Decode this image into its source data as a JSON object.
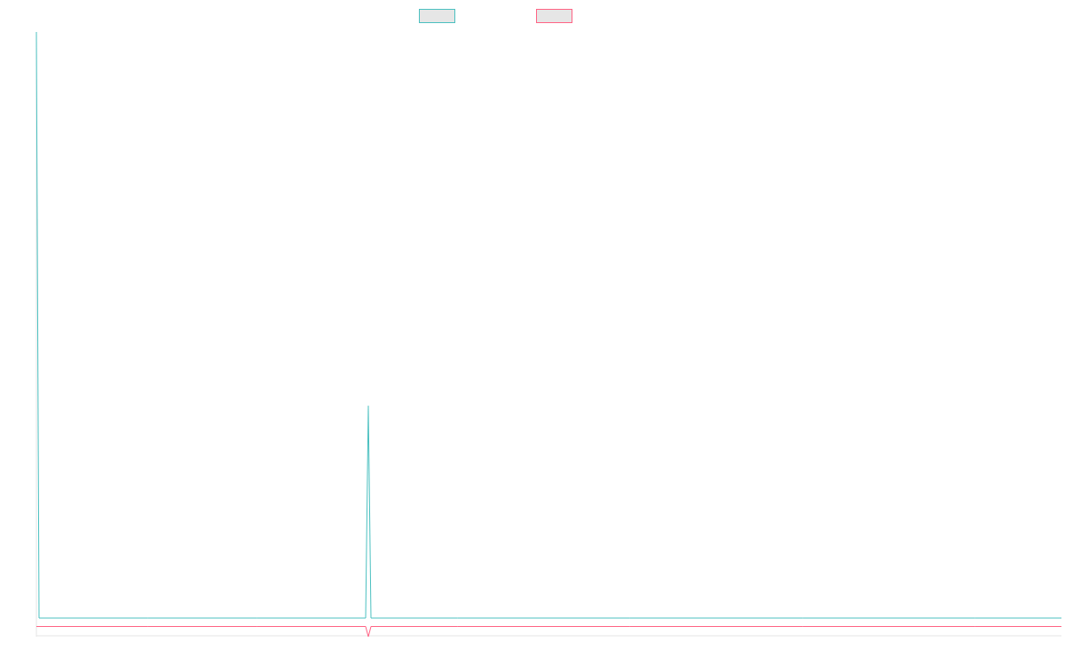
{
  "chart_data": {
    "type": "line",
    "title": "",
    "xlabel": "",
    "ylabel": "",
    "grid": false,
    "legend_position": "top-center",
    "x": [
      0,
      1,
      2,
      3,
      4,
      5,
      6,
      7,
      8,
      9,
      10,
      11,
      12,
      13,
      14
    ],
    "ylim": [
      -12,
      700
    ],
    "series": [
      {
        "name": "",
        "color": "#4bc0c0",
        "fill": "#e6e6e6",
        "values": [
          700,
          10,
          10,
          10,
          10,
          260,
          10,
          10,
          10,
          10,
          10,
          10,
          10,
          10,
          10
        ]
      },
      {
        "name": "",
        "color": "#ff6384",
        "fill": "#e6e6e6",
        "values": [
          0,
          0,
          0,
          0,
          0,
          -12,
          0,
          0,
          0,
          0,
          0,
          0,
          0,
          0,
          0
        ]
      }
    ]
  }
}
